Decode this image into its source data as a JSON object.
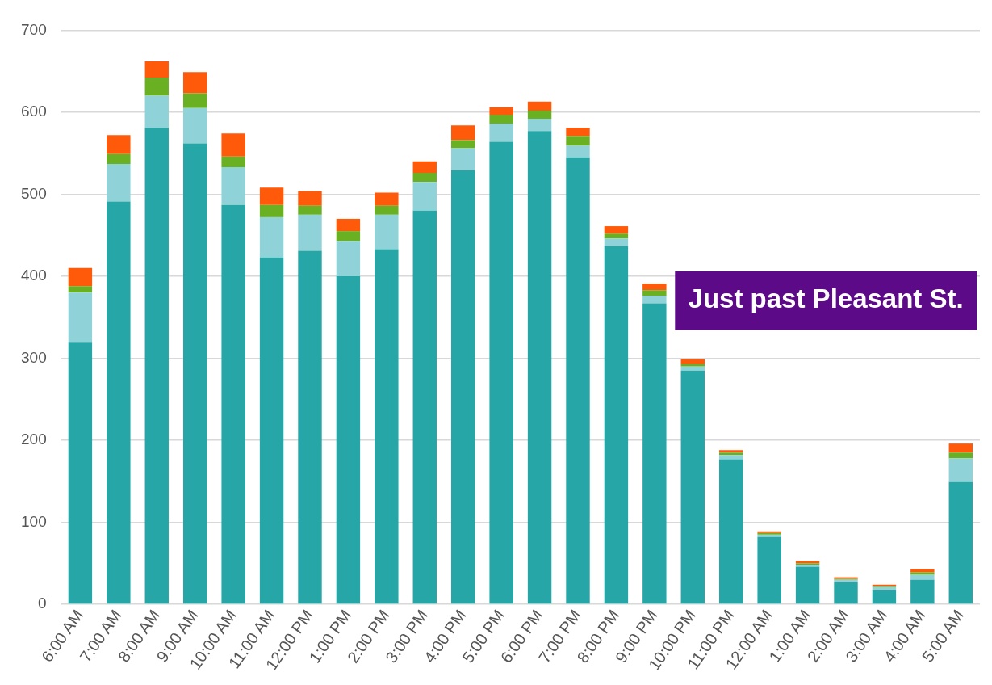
{
  "chart_data": {
    "type": "bar",
    "stacked": true,
    "categories": [
      "6:00 AM",
      "7:00 AM",
      "8:00 AM",
      "9:00 AM",
      "10:00 AM",
      "11:00 AM",
      "12:00 PM",
      "1:00 PM",
      "2:00 PM",
      "3:00 PM",
      "4:00 PM",
      "5:00 PM",
      "6:00 PM",
      "7:00 PM",
      "8:00 PM",
      "9:00 PM",
      "10:00 PM",
      "11:00 PM",
      "12:00 AM",
      "1:00 AM",
      "2:00 AM",
      "3:00 AM",
      "4:00 AM",
      "5:00 AM"
    ],
    "series": [
      {
        "color": "#26a6a6",
        "values": [
          320,
          491,
          581,
          562,
          487,
          423,
          431,
          400,
          433,
          480,
          529,
          564,
          577,
          545,
          437,
          367,
          285,
          177,
          82,
          46,
          27,
          17,
          30,
          149
        ]
      },
      {
        "color": "#8fd3d8",
        "values": [
          60,
          46,
          39,
          43,
          46,
          49,
          44,
          43,
          42,
          35,
          27,
          22,
          15,
          14,
          9,
          9,
          5,
          5,
          3,
          2,
          3,
          4,
          6,
          29
        ]
      },
      {
        "color": "#6ab023",
        "values": [
          8,
          12,
          22,
          18,
          13,
          15,
          11,
          12,
          11,
          11,
          10,
          11,
          10,
          12,
          6,
          7,
          3,
          3,
          2,
          2,
          1,
          1,
          3,
          7
        ]
      },
      {
        "color": "#ff5a0a",
        "values": [
          22,
          23,
          20,
          26,
          28,
          21,
          18,
          15,
          16,
          14,
          18,
          9,
          11,
          10,
          9,
          8,
          6,
          3,
          2,
          3,
          2,
          2,
          4,
          11
        ]
      }
    ],
    "ylim": [
      0,
      700
    ],
    "yticks": [
      0,
      100,
      200,
      300,
      400,
      500,
      600,
      700
    ],
    "grid": "y",
    "legend": false,
    "annotations": [
      "Just past Pleasant St."
    ]
  }
}
